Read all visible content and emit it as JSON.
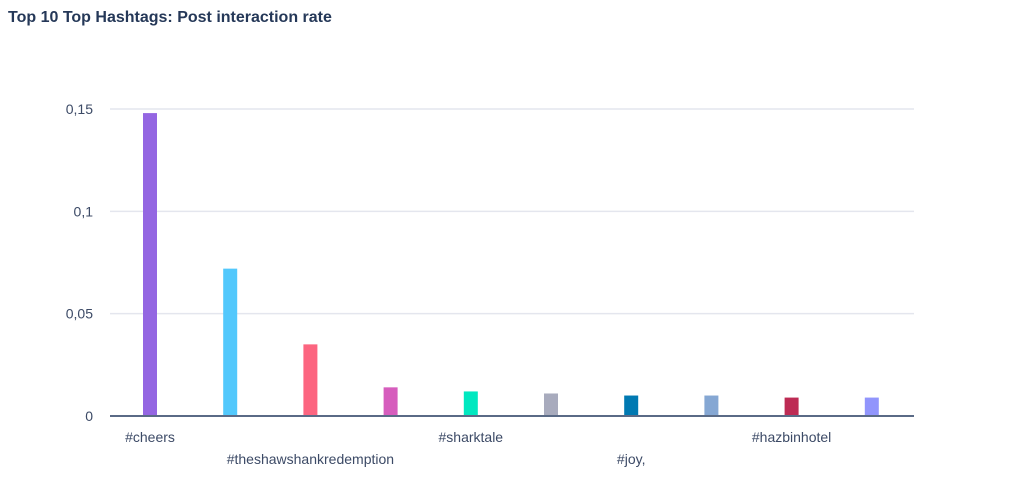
{
  "chart_data": {
    "type": "bar",
    "title": "Top 10 Top Hashtags: Post interaction rate",
    "xlabel": "",
    "ylabel": "",
    "ylim": [
      0,
      0.15
    ],
    "yticks": [
      {
        "value": 0,
        "label": "0"
      },
      {
        "value": 0.05,
        "label": "0,05"
      },
      {
        "value": 0.1,
        "label": "0,1"
      },
      {
        "value": 0.15,
        "label": "0,15"
      }
    ],
    "grid": true,
    "categories": [
      "#cheers",
      "",
      "#theshawshankredemption",
      "",
      "#sharktale",
      "",
      "#joy,",
      "",
      "#hazbinhotel",
      ""
    ],
    "values": [
      0.148,
      0.072,
      0.035,
      0.014,
      0.012,
      0.011,
      0.01,
      0.01,
      0.009,
      0.009
    ],
    "colors": [
      "#9466e2",
      "#52c8fc",
      "#fc6580",
      "#d65dbd",
      "#00e8c0",
      "#a8abbd",
      "#0079b2",
      "#85a7d3",
      "#bd2b54",
      "#9195fc"
    ]
  }
}
